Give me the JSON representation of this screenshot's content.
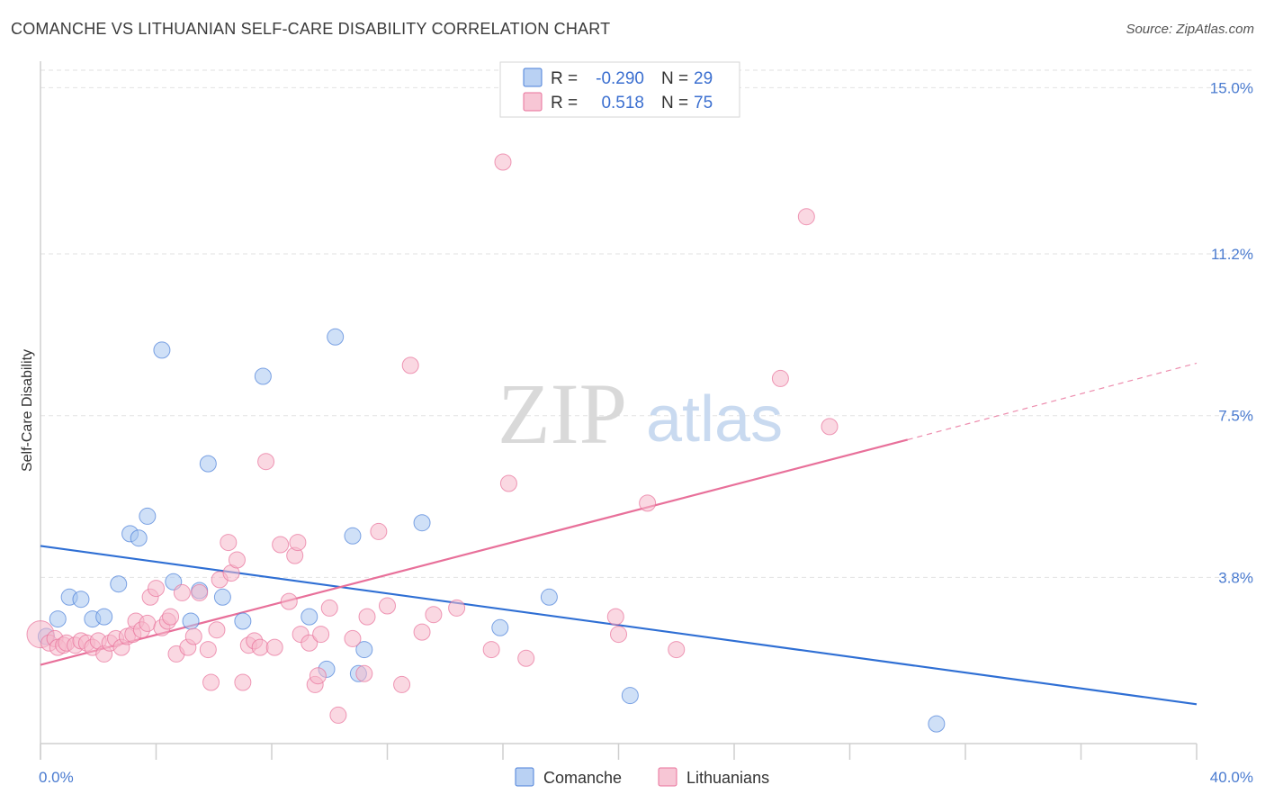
{
  "title": "COMANCHE VS LITHUANIAN SELF-CARE DISABILITY CORRELATION CHART",
  "source": "Source: ZipAtlas.com",
  "watermark": {
    "zip": "ZIP",
    "atlas": "atlas"
  },
  "legend": {
    "rows": [
      {
        "r_label": "R =",
        "r_value": "-0.290",
        "n_label": "N =",
        "n_value": "29",
        "color": "#a8c6f0"
      },
      {
        "r_label": "R =",
        "r_value": "0.518",
        "n_label": "N =",
        "n_value": "75",
        "color": "#f5b8cb"
      }
    ]
  },
  "bottom_legend": [
    {
      "label": "Comanche",
      "color": "#a8c6f0"
    },
    {
      "label": "Lithuanians",
      "color": "#f5b8cb"
    }
  ],
  "chart_data": {
    "type": "scatter",
    "title": "COMANCHE VS LITHUANIAN SELF-CARE DISABILITY CORRELATION CHART",
    "xlabel": "",
    "ylabel": "Self-Care Disability",
    "xlim": [
      0,
      40
    ],
    "ylim": [
      0,
      15.4
    ],
    "x_tick_labels": [
      {
        "value": 0,
        "label": "0.0%"
      },
      {
        "value": 40,
        "label": "40.0%"
      }
    ],
    "y_tick_labels": [
      {
        "value": 3.8,
        "label": "3.8%"
      },
      {
        "value": 7.5,
        "label": "7.5%"
      },
      {
        "value": 11.2,
        "label": "11.2%"
      },
      {
        "value": 15.0,
        "label": "15.0%"
      }
    ],
    "grid": true,
    "legend_position": "top-center",
    "series": [
      {
        "name": "Comanche",
        "color": "#4a7fd8",
        "fill": "#a8c6f0",
        "trend": {
          "x0": 0,
          "y0": 4.52,
          "x1": 40,
          "y1": 0.9
        },
        "points": [
          [
            0.2,
            2.45
          ],
          [
            0.6,
            2.85
          ],
          [
            1.0,
            3.35
          ],
          [
            1.4,
            3.3
          ],
          [
            1.8,
            2.85
          ],
          [
            2.2,
            2.9
          ],
          [
            2.7,
            3.65
          ],
          [
            3.1,
            4.8
          ],
          [
            3.4,
            4.7
          ],
          [
            3.7,
            5.2
          ],
          [
            4.2,
            9.0
          ],
          [
            4.6,
            3.7
          ],
          [
            5.2,
            2.8
          ],
          [
            5.8,
            6.4
          ],
          [
            5.5,
            3.5
          ],
          [
            6.3,
            3.35
          ],
          [
            7.0,
            2.8
          ],
          [
            7.7,
            8.4
          ],
          [
            9.3,
            2.9
          ],
          [
            9.9,
            1.7
          ],
          [
            10.2,
            9.3
          ],
          [
            10.8,
            4.75
          ],
          [
            11.0,
            1.6
          ],
          [
            11.2,
            2.15
          ],
          [
            13.2,
            5.05
          ],
          [
            15.9,
            2.65
          ],
          [
            17.6,
            3.35
          ],
          [
            20.4,
            1.1
          ],
          [
            31.0,
            0.45
          ]
        ]
      },
      {
        "name": "Lithuanians",
        "color": "#e8709a",
        "fill": "#f5b8cb",
        "trend": {
          "x0": 0,
          "y0": 1.8,
          "x1": 30.0,
          "y1": 6.95,
          "dash_x1": 40,
          "dash_y1": 8.7
        },
        "points": [
          [
            0.0,
            2.5
          ],
          [
            0.3,
            2.3
          ],
          [
            0.5,
            2.4
          ],
          [
            0.6,
            2.2
          ],
          [
            0.8,
            2.25
          ],
          [
            0.9,
            2.3
          ],
          [
            1.2,
            2.25
          ],
          [
            1.4,
            2.35
          ],
          [
            1.6,
            2.3
          ],
          [
            1.8,
            2.2
          ],
          [
            2.0,
            2.35
          ],
          [
            2.2,
            2.05
          ],
          [
            2.4,
            2.3
          ],
          [
            2.6,
            2.4
          ],
          [
            2.8,
            2.2
          ],
          [
            3.0,
            2.45
          ],
          [
            3.2,
            2.5
          ],
          [
            3.3,
            2.8
          ],
          [
            3.5,
            2.6
          ],
          [
            3.7,
            2.75
          ],
          [
            3.8,
            3.35
          ],
          [
            4.0,
            3.55
          ],
          [
            4.2,
            2.65
          ],
          [
            4.4,
            2.8
          ],
          [
            4.5,
            2.9
          ],
          [
            4.7,
            2.05
          ],
          [
            4.9,
            3.45
          ],
          [
            5.1,
            2.2
          ],
          [
            5.3,
            2.45
          ],
          [
            5.5,
            3.45
          ],
          [
            5.8,
            2.15
          ],
          [
            5.9,
            1.4
          ],
          [
            6.1,
            2.6
          ],
          [
            6.2,
            3.75
          ],
          [
            6.5,
            4.6
          ],
          [
            6.6,
            3.9
          ],
          [
            6.8,
            4.2
          ],
          [
            7.0,
            1.4
          ],
          [
            7.2,
            2.25
          ],
          [
            7.4,
            2.35
          ],
          [
            7.6,
            2.2
          ],
          [
            7.8,
            6.45
          ],
          [
            8.1,
            2.2
          ],
          [
            8.3,
            4.55
          ],
          [
            8.6,
            3.25
          ],
          [
            8.8,
            4.3
          ],
          [
            8.9,
            4.6
          ],
          [
            9.0,
            2.5
          ],
          [
            9.3,
            2.3
          ],
          [
            9.5,
            1.35
          ],
          [
            9.6,
            1.55
          ],
          [
            9.7,
            2.5
          ],
          [
            10.0,
            3.1
          ],
          [
            10.3,
            0.65
          ],
          [
            10.8,
            2.4
          ],
          [
            11.2,
            1.6
          ],
          [
            11.3,
            2.9
          ],
          [
            11.7,
            4.85
          ],
          [
            12.0,
            3.15
          ],
          [
            12.5,
            1.35
          ],
          [
            12.8,
            8.65
          ],
          [
            13.2,
            2.55
          ],
          [
            13.6,
            2.95
          ],
          [
            14.4,
            3.1
          ],
          [
            15.6,
            2.15
          ],
          [
            16.0,
            13.3
          ],
          [
            16.2,
            5.95
          ],
          [
            16.8,
            1.95
          ],
          [
            19.9,
            2.9
          ],
          [
            20.0,
            2.5
          ],
          [
            21.0,
            5.5
          ],
          [
            22.0,
            2.15
          ],
          [
            25.6,
            8.35
          ],
          [
            26.5,
            12.05
          ],
          [
            27.3,
            7.25
          ]
        ]
      }
    ]
  }
}
